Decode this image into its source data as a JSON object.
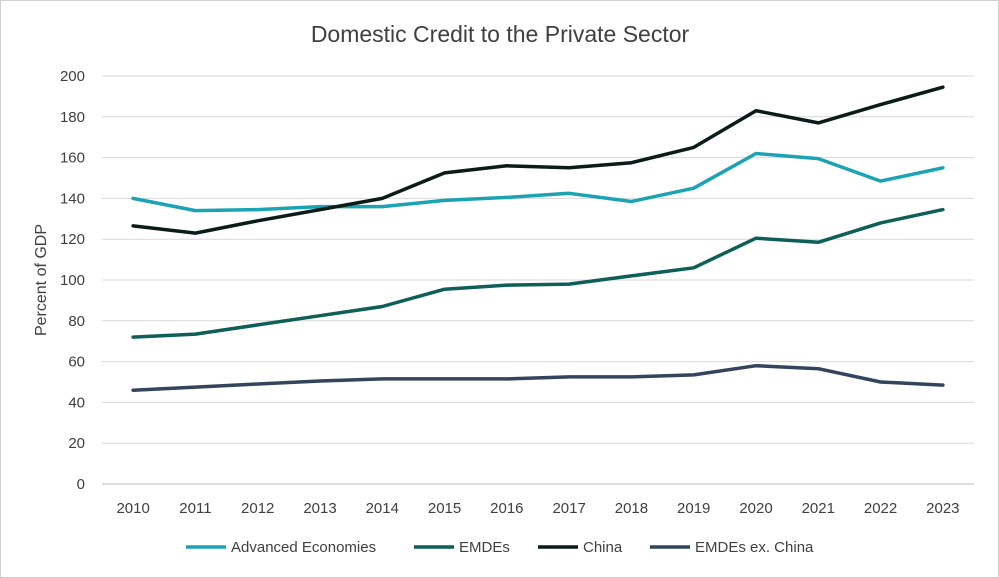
{
  "chart_data": {
    "type": "line",
    "title": "Domestic Credit to the Private Sector",
    "xlabel": "",
    "ylabel": "Percent of GDP",
    "ylim": [
      0,
      200
    ],
    "yticks": [
      0,
      20,
      40,
      60,
      80,
      100,
      120,
      140,
      160,
      180,
      200
    ],
    "grid": true,
    "legend_position": "bottom",
    "categories": [
      "2010",
      "2011",
      "2012",
      "2013",
      "2014",
      "2015",
      "2016",
      "2017",
      "2018",
      "2019",
      "2020",
      "2021",
      "2022",
      "2023"
    ],
    "series": [
      {
        "name": "Advanced Economies",
        "color": "#1ba3b4",
        "values": [
          140,
          134,
          134.5,
          136,
          136,
          139,
          140.5,
          142.5,
          138.5,
          145,
          162,
          159.5,
          148.5,
          155
        ]
      },
      {
        "name": "EMDEs",
        "color": "#0d5f57",
        "values": [
          72,
          73.5,
          78,
          82.5,
          87,
          95.5,
          97.5,
          98,
          102,
          106,
          120.5,
          118.5,
          128,
          134.5
        ]
      },
      {
        "name": "China",
        "color": "#0b1c18",
        "values": [
          126.5,
          123,
          129,
          134.5,
          140,
          152.5,
          156,
          155,
          157.5,
          165,
          183,
          177,
          186,
          194.5
        ]
      },
      {
        "name": "EMDEs ex. China",
        "color": "#34445c",
        "values": [
          46,
          47.5,
          49,
          50.5,
          51.5,
          51.5,
          51.5,
          52.5,
          52.5,
          53.5,
          58,
          56.5,
          50,
          48.5
        ]
      }
    ]
  }
}
